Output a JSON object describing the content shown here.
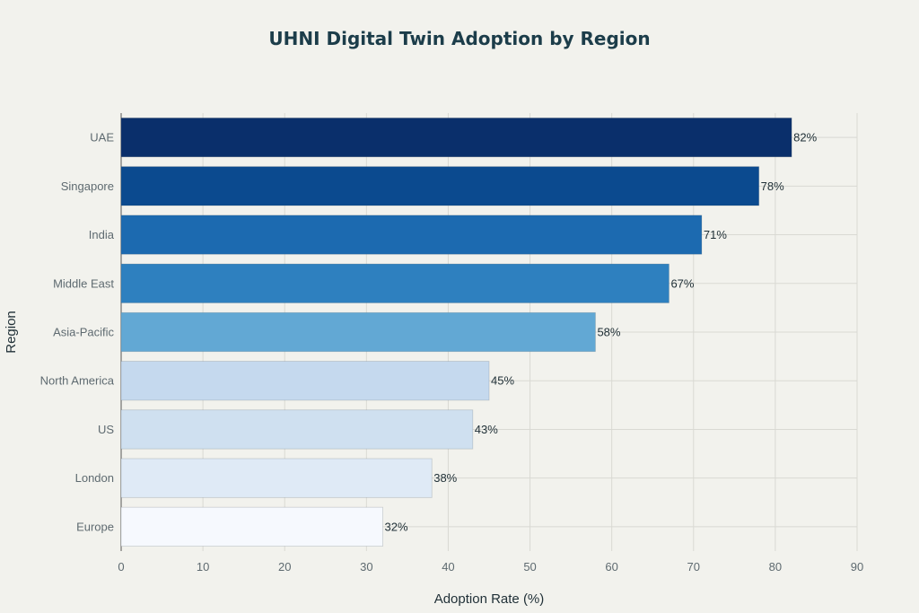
{
  "chart_data": {
    "type": "bar",
    "orientation": "horizontal",
    "title": "UHNI Digital Twin Adoption by Region",
    "xlabel": "Adoption Rate (%)",
    "ylabel": "Region",
    "xlim": [
      0,
      90
    ],
    "xticks": [
      0,
      10,
      20,
      30,
      40,
      50,
      60,
      70,
      80,
      90
    ],
    "categories": [
      "UAE",
      "Singapore",
      "India",
      "Middle East",
      "Asia-Pacific",
      "North America",
      "US",
      "London",
      "Europe"
    ],
    "values": [
      82,
      78,
      71,
      67,
      58,
      45,
      43,
      38,
      32
    ],
    "data_labels": [
      "82%",
      "78%",
      "71%",
      "67%",
      "58%",
      "45%",
      "43%",
      "38%",
      "32%"
    ],
    "colors": [
      "#0a2f6b",
      "#0b4a8f",
      "#1c6ab0",
      "#2e80bf",
      "#62a8d4",
      "#c5d9ee",
      "#cfe0f0",
      "#dfeaf6",
      "#f6f9fe"
    ],
    "grid": true,
    "legend": "none"
  }
}
